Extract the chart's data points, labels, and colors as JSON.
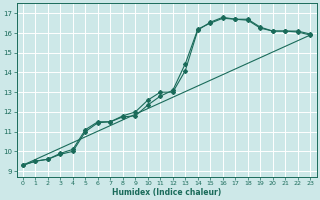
{
  "xlabel": "Humidex (Indice chaleur)",
  "xlim": [
    -0.5,
    23.5
  ],
  "ylim": [
    8.7,
    17.5
  ],
  "xticks": [
    0,
    1,
    2,
    3,
    4,
    5,
    6,
    7,
    8,
    9,
    10,
    11,
    12,
    13,
    14,
    15,
    16,
    17,
    18,
    19,
    20,
    21,
    22,
    23
  ],
  "yticks": [
    9,
    10,
    11,
    12,
    13,
    14,
    15,
    16,
    17
  ],
  "bg_color": "#cde8e8",
  "grid_color": "#ffffff",
  "line_color": "#1a6b5a",
  "line1_x": [
    0,
    1,
    2,
    3,
    4,
    5,
    6,
    7,
    8,
    9,
    10,
    11,
    12,
    13,
    14,
    15,
    16,
    17,
    18,
    19,
    20,
    21,
    22,
    23
  ],
  "line1_y": [
    9.3,
    9.5,
    9.6,
    9.9,
    10.1,
    11.1,
    11.5,
    11.5,
    11.8,
    12.0,
    12.6,
    13.0,
    13.0,
    14.1,
    16.15,
    16.55,
    16.8,
    16.7,
    16.7,
    16.3,
    16.1,
    16.1,
    16.1,
    15.95
  ],
  "line2_x": [
    0,
    1,
    2,
    3,
    4,
    5,
    6,
    7,
    8,
    9,
    10,
    11,
    12,
    13,
    14,
    15,
    16,
    17,
    18,
    19,
    20,
    21,
    22,
    23
  ],
  "line2_y": [
    9.3,
    9.5,
    9.6,
    9.85,
    10.0,
    11.0,
    11.45,
    11.5,
    11.75,
    11.8,
    12.35,
    12.8,
    13.1,
    14.45,
    16.2,
    16.5,
    16.75,
    16.7,
    16.65,
    16.25,
    16.1,
    16.1,
    16.05,
    15.9
  ],
  "line3_x": [
    0,
    23
  ],
  "line3_y": [
    9.3,
    15.9
  ]
}
